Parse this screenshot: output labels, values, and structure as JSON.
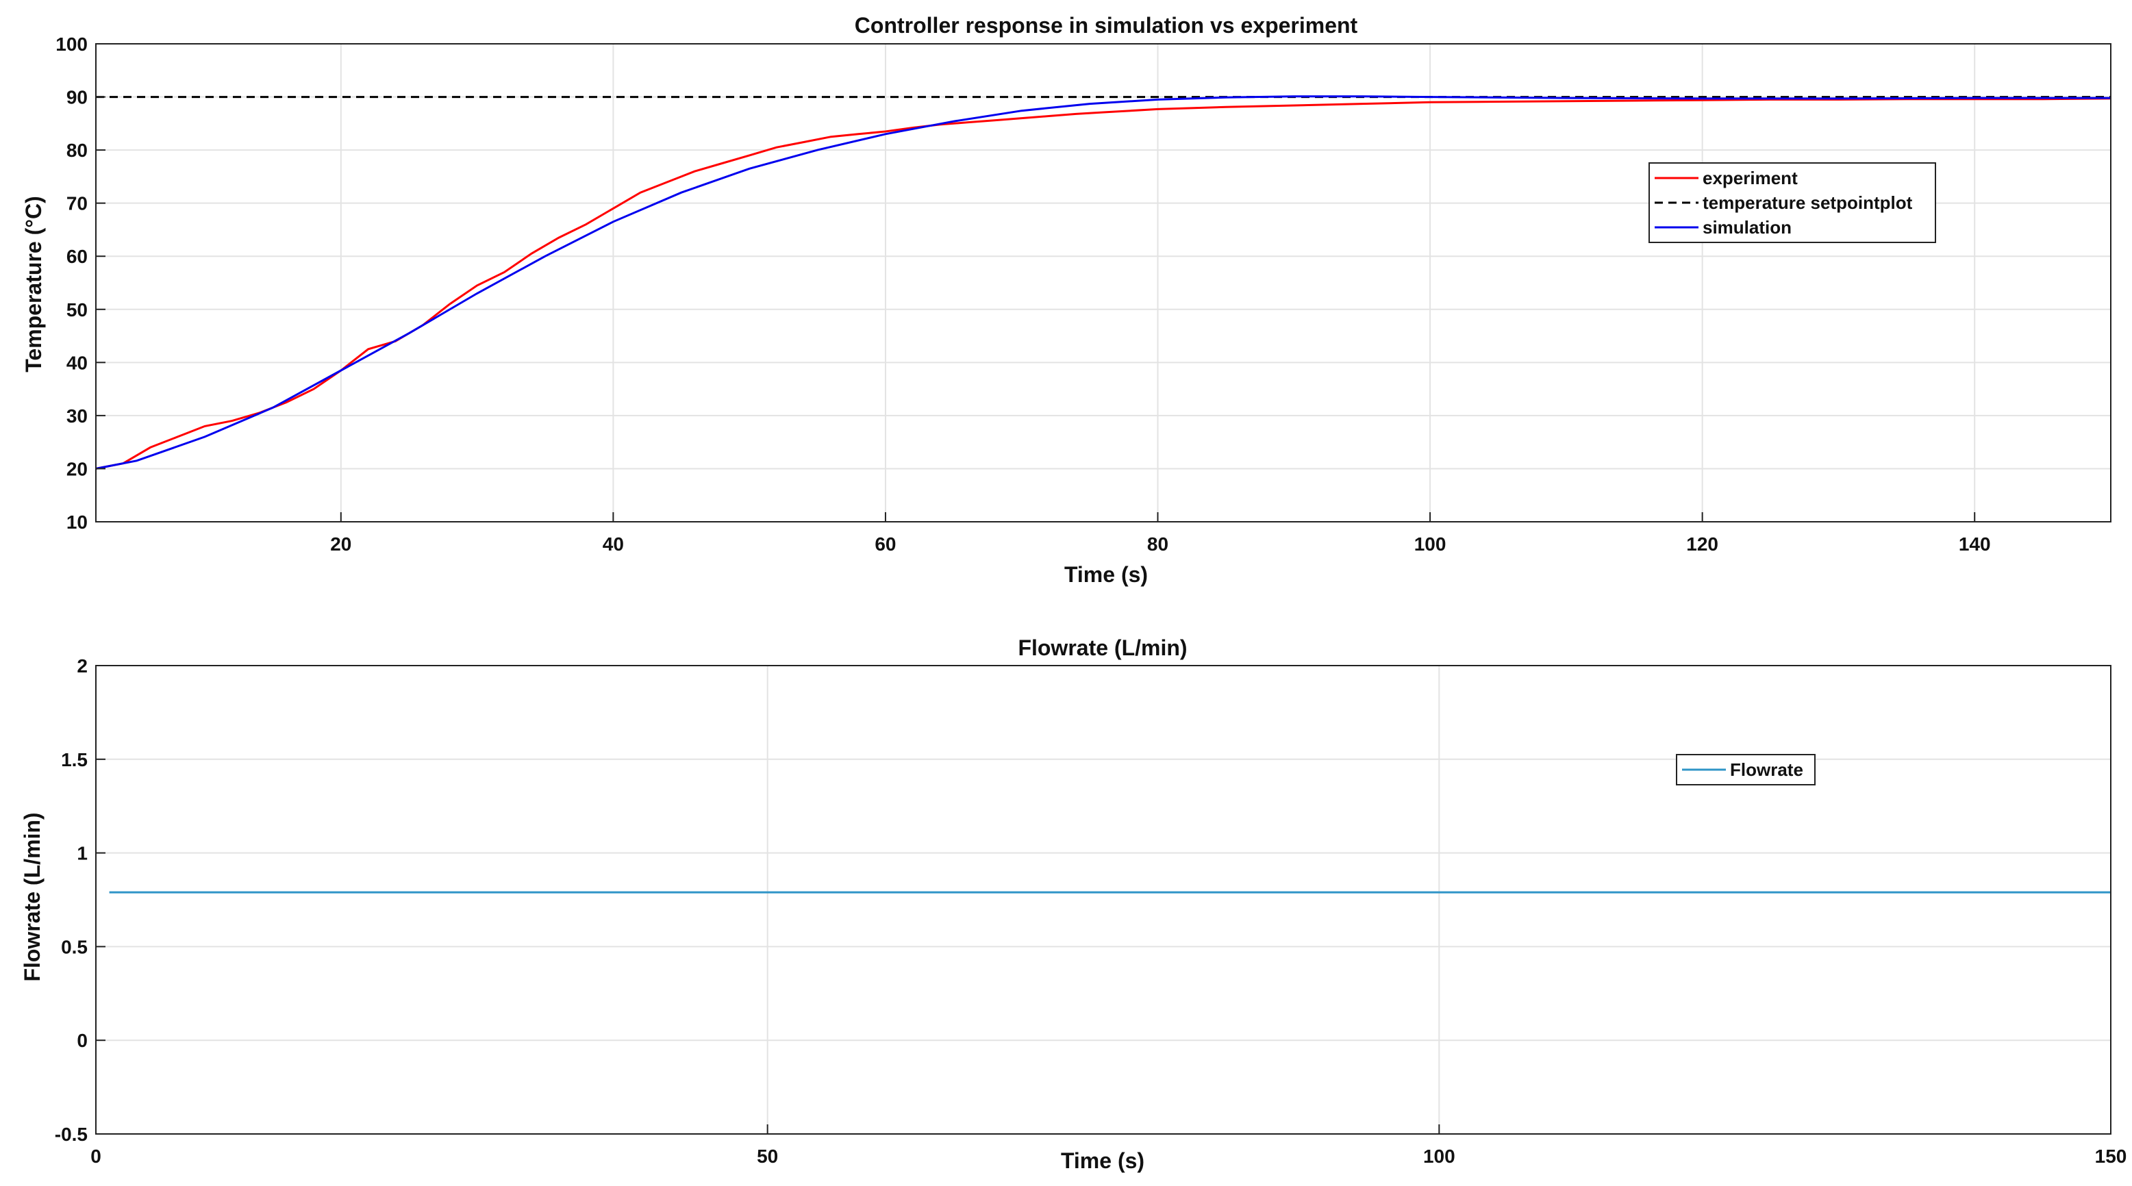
{
  "chart_data": [
    {
      "type": "line",
      "title": "Controller response in simulation vs experiment",
      "xlabel": "Time (s)",
      "ylabel": "Temperature (°C)",
      "xlim": [
        2,
        150
      ],
      "ylim": [
        10,
        100
      ],
      "xticks": [
        20,
        40,
        60,
        80,
        100,
        120,
        140
      ],
      "yticks": [
        10,
        20,
        30,
        40,
        50,
        60,
        70,
        80,
        90,
        100
      ],
      "grid": true,
      "legend_position": "upper-right",
      "series": [
        {
          "name": "experiment",
          "color": "#ff0000",
          "style": "solid",
          "x": [
            2,
            4,
            6,
            8,
            10,
            12,
            14,
            16,
            18,
            20,
            22,
            24,
            26,
            28,
            30,
            32,
            34,
            36,
            38,
            40,
            42,
            44,
            46,
            48,
            50,
            52,
            54,
            56,
            58,
            60,
            62,
            64,
            66,
            68,
            70,
            72,
            74,
            76,
            78,
            80,
            85,
            90,
            95,
            100,
            105,
            110,
            115,
            120,
            125,
            130,
            135,
            140,
            145,
            150
          ],
          "y": [
            20,
            21,
            24,
            26,
            28,
            29,
            30.5,
            32.5,
            35,
            38.5,
            42.5,
            44,
            47,
            51,
            54.5,
            57,
            60.5,
            63.5,
            66,
            69,
            72,
            74,
            76,
            77.5,
            79,
            80.5,
            81.5,
            82.5,
            83,
            83.5,
            84.2,
            84.8,
            85.2,
            85.6,
            86,
            86.4,
            86.8,
            87.1,
            87.4,
            87.7,
            88.1,
            88.4,
            88.7,
            89,
            89.1,
            89.2,
            89.3,
            89.4,
            89.5,
            89.5,
            89.6,
            89.6,
            89.6,
            89.7
          ]
        },
        {
          "name": "temperature setpointplot",
          "color": "#000000",
          "style": "dashed",
          "x": [
            2,
            150
          ],
          "y": [
            90,
            90
          ]
        },
        {
          "name": "simulation",
          "color": "#0000ee",
          "style": "solid",
          "x": [
            2,
            5,
            10,
            15,
            20,
            25,
            30,
            35,
            40,
            45,
            50,
            55,
            60,
            65,
            70,
            75,
            80,
            85,
            90,
            95,
            100,
            110,
            120,
            130,
            140,
            150
          ],
          "y": [
            20,
            21.5,
            26,
            31.5,
            38.5,
            45.5,
            53,
            60,
            66.5,
            72,
            76.5,
            80,
            83,
            85.4,
            87.4,
            88.7,
            89.5,
            89.9,
            90.1,
            90.1,
            90,
            89.8,
            89.7,
            89.7,
            89.8,
            89.8
          ]
        }
      ]
    },
    {
      "type": "line",
      "title": "Flowrate (L/min)",
      "xlabel": "Time (s)",
      "ylabel": "Flowrate (L/min)",
      "xlim": [
        0,
        150
      ],
      "ylim": [
        -0.5,
        2
      ],
      "xticks": [
        0,
        50,
        100,
        150
      ],
      "yticks": [
        -0.5,
        0,
        0.5,
        1,
        1.5,
        2
      ],
      "grid": true,
      "legend_position": "upper-right",
      "series": [
        {
          "name": "Flowrate",
          "color": "#2f95c7",
          "style": "solid",
          "x": [
            1,
            150
          ],
          "y": [
            0.79,
            0.79
          ]
        }
      ]
    }
  ]
}
